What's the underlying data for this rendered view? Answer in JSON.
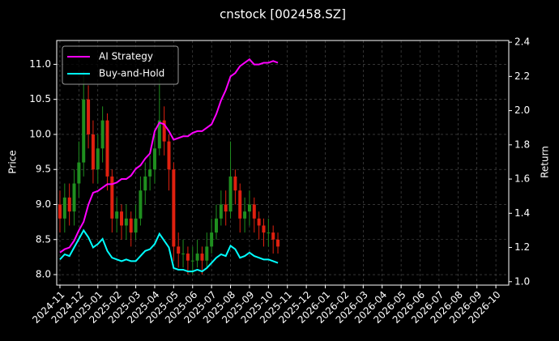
{
  "chart_data": {
    "type": "candlestick",
    "title": "cnstock [002458.SZ]",
    "ylabel": "Price",
    "y2label": "Return",
    "x": [
      0,
      0.25,
      0.5,
      0.75,
      1,
      1.25,
      1.5,
      1.75,
      2,
      2.25,
      2.5,
      2.75,
      3,
      3.25,
      3.5,
      3.75,
      4,
      4.25,
      4.5,
      4.75,
      5,
      5.25,
      5.5,
      5.75,
      6,
      6.25,
      6.5,
      6.75,
      7,
      7.25,
      7.5,
      7.75,
      8,
      8.25,
      8.5,
      8.75,
      9,
      9.25,
      9.5,
      9.75,
      10,
      10.25,
      10.5,
      10.75,
      11,
      11.25,
      11.5
    ],
    "open": [
      9.0,
      8.8,
      9.1,
      8.9,
      9.3,
      9.6,
      10.5,
      10.0,
      9.5,
      9.8,
      10.2,
      9.4,
      8.8,
      8.9,
      8.7,
      8.8,
      8.6,
      8.8,
      9.2,
      9.4,
      9.5,
      9.8,
      10.2,
      9.9,
      9.5,
      8.4,
      8.3,
      8.3,
      8.2,
      8.2,
      8.3,
      8.2,
      8.4,
      8.6,
      8.8,
      9.0,
      8.9,
      9.4,
      9.2,
      8.8,
      8.9,
      9.0,
      8.8,
      8.7,
      8.6,
      8.6,
      8.5
    ],
    "high": [
      9.2,
      9.3,
      9.3,
      9.5,
      9.9,
      10.9,
      10.7,
      10.2,
      10.0,
      10.4,
      10.3,
      9.5,
      9.1,
      9.0,
      9.0,
      8.9,
      9.0,
      9.4,
      9.6,
      9.7,
      10.0,
      10.8,
      10.4,
      10.0,
      9.6,
      8.6,
      8.5,
      8.4,
      8.4,
      8.5,
      8.4,
      8.6,
      8.8,
      9.0,
      9.2,
      9.2,
      9.9,
      9.5,
      9.3,
      9.1,
      9.2,
      9.1,
      8.9,
      8.8,
      8.8,
      8.7,
      8.6
    ],
    "low": [
      8.6,
      8.6,
      8.7,
      8.7,
      9.1,
      9.4,
      9.8,
      9.3,
      9.3,
      9.6,
      9.2,
      8.6,
      8.6,
      8.5,
      8.5,
      8.4,
      8.5,
      8.7,
      9.0,
      9.2,
      9.3,
      9.7,
      9.7,
      9.2,
      8.2,
      8.1,
      8.1,
      8.0,
      8.0,
      8.1,
      8.0,
      8.1,
      8.3,
      8.5,
      8.7,
      8.7,
      8.8,
      9.0,
      8.6,
      8.6,
      8.7,
      8.6,
      8.5,
      8.4,
      8.4,
      8.3,
      8.3
    ],
    "close": [
      8.8,
      9.1,
      8.9,
      9.3,
      9.6,
      10.5,
      10.0,
      9.5,
      9.8,
      10.2,
      9.4,
      8.8,
      8.9,
      8.7,
      8.8,
      8.6,
      8.8,
      9.2,
      9.4,
      9.5,
      9.8,
      10.2,
      9.9,
      9.5,
      8.4,
      8.3,
      8.3,
      8.2,
      8.2,
      8.3,
      8.2,
      8.4,
      8.6,
      8.8,
      9.0,
      8.9,
      9.4,
      9.2,
      8.8,
      8.9,
      9.0,
      8.8,
      8.7,
      8.6,
      8.6,
      8.5,
      8.4
    ],
    "up_color": "#1f8f1f",
    "down_color": "#e0200f",
    "series": [
      {
        "name": "AI Strategy",
        "color": "#ff00ff",
        "axis": "y2",
        "values": [
          1.17,
          1.19,
          1.2,
          1.24,
          1.3,
          1.35,
          1.45,
          1.52,
          1.53,
          1.55,
          1.57,
          1.57,
          1.58,
          1.6,
          1.6,
          1.62,
          1.66,
          1.68,
          1.72,
          1.75,
          1.88,
          1.93,
          1.92,
          1.88,
          1.83,
          1.84,
          1.85,
          1.85,
          1.87,
          1.88,
          1.88,
          1.9,
          1.92,
          1.98,
          2.06,
          2.12,
          2.2,
          2.22,
          2.26,
          2.28,
          2.3,
          2.27,
          2.27,
          2.28,
          2.28,
          2.29,
          2.28
        ]
      },
      {
        "name": "Buy-and-Hold",
        "color": "#00ffff",
        "axis": "y2",
        "values": [
          1.13,
          1.16,
          1.15,
          1.2,
          1.25,
          1.3,
          1.26,
          1.2,
          1.22,
          1.25,
          1.18,
          1.14,
          1.13,
          1.12,
          1.13,
          1.12,
          1.12,
          1.15,
          1.18,
          1.19,
          1.22,
          1.28,
          1.24,
          1.2,
          1.08,
          1.07,
          1.07,
          1.06,
          1.06,
          1.07,
          1.06,
          1.08,
          1.11,
          1.14,
          1.16,
          1.15,
          1.21,
          1.19,
          1.14,
          1.15,
          1.17,
          1.15,
          1.14,
          1.13,
          1.13,
          1.12,
          1.11
        ]
      }
    ],
    "xlim": [
      -0.17,
      23.68
    ],
    "xticks": [
      {
        "value": 0,
        "label": "2024-11"
      },
      {
        "value": 1,
        "label": "2024-12"
      },
      {
        "value": 2,
        "label": "2025-01"
      },
      {
        "value": 3,
        "label": "2025-02"
      },
      {
        "value": 4,
        "label": "2025-03"
      },
      {
        "value": 5,
        "label": "2025-04"
      },
      {
        "value": 6,
        "label": "2025-05"
      },
      {
        "value": 7,
        "label": "2025-06"
      },
      {
        "value": 8,
        "label": "2025-07"
      },
      {
        "value": 9,
        "label": "2025-08"
      },
      {
        "value": 10,
        "label": "2025-09"
      },
      {
        "value": 11,
        "label": "2025-10"
      },
      {
        "value": 12,
        "label": "2025-11"
      },
      {
        "value": 13,
        "label": "2025-12"
      },
      {
        "value": 14,
        "label": "2026-01"
      },
      {
        "value": 15,
        "label": "2026-02"
      },
      {
        "value": 16,
        "label": "2026-03"
      },
      {
        "value": 17,
        "label": "2026-04"
      },
      {
        "value": 18,
        "label": "2026-05"
      },
      {
        "value": 19,
        "label": "2026-06"
      },
      {
        "value": 20,
        "label": "2026-07"
      },
      {
        "value": 21,
        "label": "2026-08"
      },
      {
        "value": 22,
        "label": "2026-09"
      },
      {
        "value": 23,
        "label": "2026-10"
      }
    ],
    "ylim": [
      7.85,
      11.34
    ],
    "yticks": [
      {
        "value": 8,
        "label": "8.0"
      },
      8.5,
      {
        "value": 9,
        "label": "9.0"
      },
      9.5,
      {
        "value": 10,
        "label": "10.0"
      },
      10.5,
      {
        "value": 11,
        "label": "11.0"
      }
    ],
    "y2lim": [
      0.98,
      2.41
    ],
    "y2ticks": [
      {
        "value": 1,
        "label": "1.0"
      },
      1.2,
      1.4,
      1.6,
      1.8,
      {
        "value": 2,
        "label": "2.0"
      },
      2.2,
      2.4
    ],
    "grid": true,
    "legend": "upper left"
  }
}
